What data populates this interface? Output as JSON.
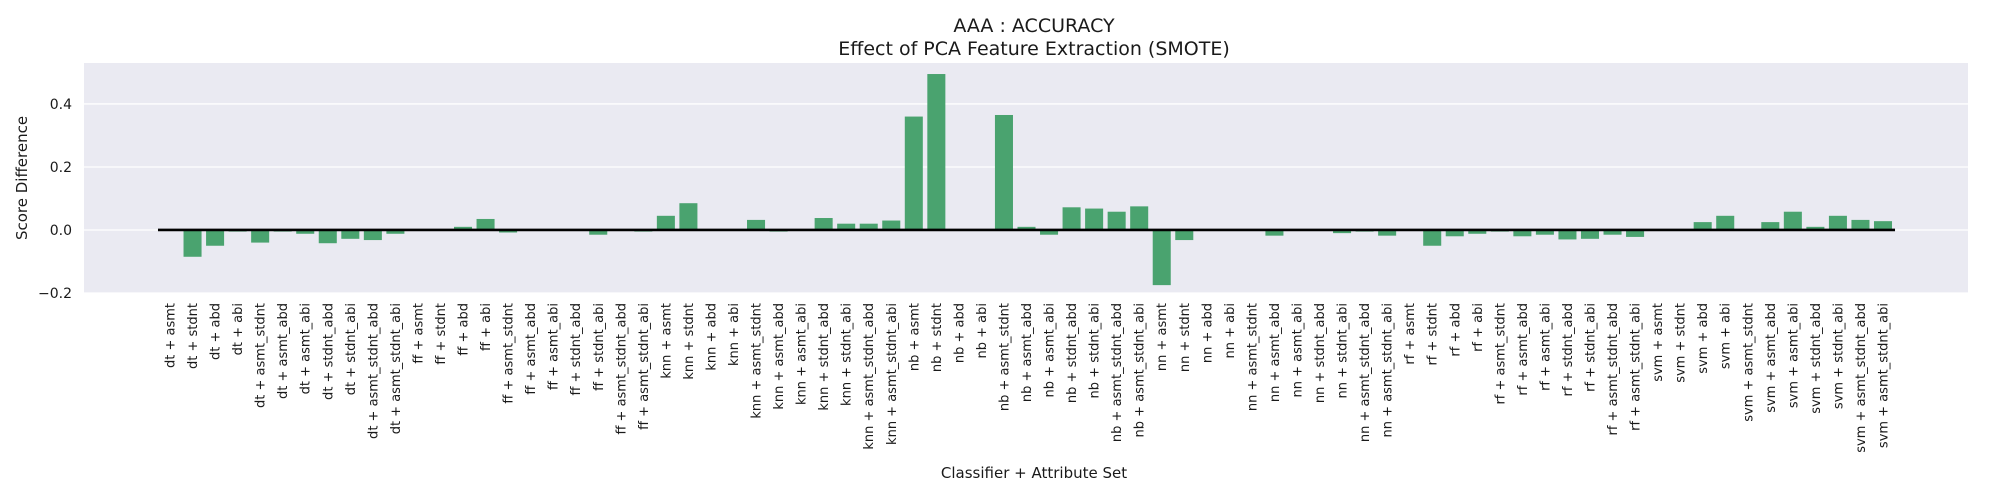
{
  "chart_data": {
    "type": "bar",
    "title": "AAA : ACCURACY",
    "subtitle": "Effect of PCA Feature Extraction (SMOTE)",
    "xlabel": "Classifier + Attribute Set",
    "ylabel": "Score Difference",
    "ylim": [
      -0.2,
      0.53
    ],
    "yticks": [
      -0.2,
      0.0,
      0.2,
      0.4
    ],
    "ytick_labels": [
      "−0.2",
      "0.0",
      "0.2",
      "0.4"
    ],
    "grid": true,
    "bar_color": "#4aa36f",
    "background_color": "#eaeaf2",
    "zero_line_color": "#000000",
    "categories": [
      "dt + asmt",
      "dt + stdnt",
      "dt + abd",
      "dt + abi",
      "dt + asmt_stdnt",
      "dt + asmt_abd",
      "dt + asmt_abi",
      "dt + stdnt_abd",
      "dt + stdnt_abi",
      "dt + asmt_stdnt_abd",
      "dt + asmt_stdnt_abi",
      "ff + asmt",
      "ff + stdnt",
      "ff + abd",
      "ff + abi",
      "ff + asmt_stdnt",
      "ff + asmt_abd",
      "ff + asmt_abi",
      "ff + stdnt_abd",
      "ff + stdnt_abi",
      "ff + asmt_stdnt_abd",
      "ff + asmt_stdnt_abi",
      "knn + asmt",
      "knn + stdnt",
      "knn + abd",
      "knn + abi",
      "knn + asmt_stdnt",
      "knn + asmt_abd",
      "knn + asmt_abi",
      "knn + stdnt_abd",
      "knn + stdnt_abi",
      "knn + asmt_stdnt_abd",
      "knn + asmt_stdnt_abi",
      "nb + asmt",
      "nb + stdnt",
      "nb + abd",
      "nb + abi",
      "nb + asmt_stdnt",
      "nb + asmt_abd",
      "nb + asmt_abi",
      "nb + stdnt_abd",
      "nb + stdnt_abi",
      "nb + asmt_stdnt_abd",
      "nb + asmt_stdnt_abi",
      "nn + asmt",
      "nn + stdnt",
      "nn + abd",
      "nn + abi",
      "nn + asmt_stdnt",
      "nn + asmt_abd",
      "nn + asmt_abi",
      "nn + stdnt_abd",
      "nn + stdnt_abi",
      "nn + asmt_stdnt_abd",
      "nn + asmt_stdnt_abi",
      "rf + asmt",
      "rf + stdnt",
      "rf + abd",
      "rf + abi",
      "rf + asmt_stdnt",
      "rf + asmt_abd",
      "rf + asmt_abi",
      "rf + stdnt_abd",
      "rf + stdnt_abi",
      "rf + asmt_stdnt_abd",
      "rf + asmt_stdnt_abi",
      "svm + asmt",
      "svm + stdnt",
      "svm + abd",
      "svm + abi",
      "svm + asmt_stdnt",
      "svm + asmt_abd",
      "svm + asmt_abi",
      "svm + stdnt_abd",
      "svm + stdnt_abi",
      "svm + asmt_stdnt_abd",
      "svm + asmt_stdnt_abi"
    ],
    "values": [
      0.0,
      -0.085,
      -0.05,
      -0.005,
      -0.04,
      -0.005,
      -0.012,
      -0.042,
      -0.028,
      -0.032,
      -0.012,
      0.0,
      0.0,
      0.01,
      0.035,
      -0.008,
      0.0,
      0.0,
      0.0,
      -0.015,
      -0.003,
      -0.005,
      0.045,
      0.085,
      0.0,
      0.0,
      0.032,
      -0.005,
      -0.003,
      0.038,
      0.02,
      0.02,
      0.03,
      0.36,
      0.495,
      0.0,
      0.0,
      0.365,
      0.01,
      -0.015,
      0.072,
      0.068,
      0.058,
      0.075,
      -0.175,
      -0.032,
      0.0,
      0.0,
      0.0,
      -0.018,
      0.0,
      0.0,
      -0.01,
      -0.005,
      -0.018,
      0.0,
      -0.05,
      -0.02,
      -0.012,
      -0.005,
      -0.02,
      -0.015,
      -0.03,
      -0.028,
      -0.015,
      -0.022,
      0.0,
      0.0,
      0.025,
      0.045,
      0.0,
      0.025,
      0.058,
      0.01,
      0.045,
      0.032,
      0.028
    ]
  }
}
